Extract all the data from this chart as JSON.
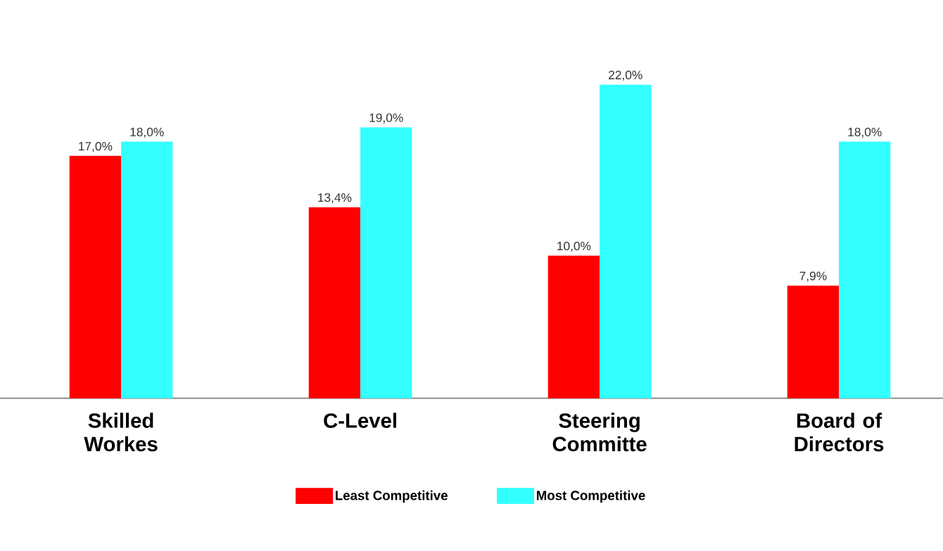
{
  "chart_data": {
    "type": "bar",
    "categories": [
      "Skilled Workes",
      "C-Level",
      "Steering Committe",
      "Board of Directors"
    ],
    "series": [
      {
        "name": "Least Competitive",
        "color": "#ff0000",
        "values": [
          17.0,
          13.4,
          10.0,
          7.9
        ],
        "value_labels": [
          "17,0%",
          "13,4%",
          "10,0%",
          "7,9%"
        ]
      },
      {
        "name": "Most Competitive",
        "color": "#33ffff",
        "values": [
          18.0,
          19.0,
          22.0,
          18.0
        ],
        "value_labels": [
          "18,0%",
          "19,0%",
          "22,0%",
          "18,0%"
        ]
      }
    ],
    "tick_labels": "x",
    "legend": "bottom"
  }
}
